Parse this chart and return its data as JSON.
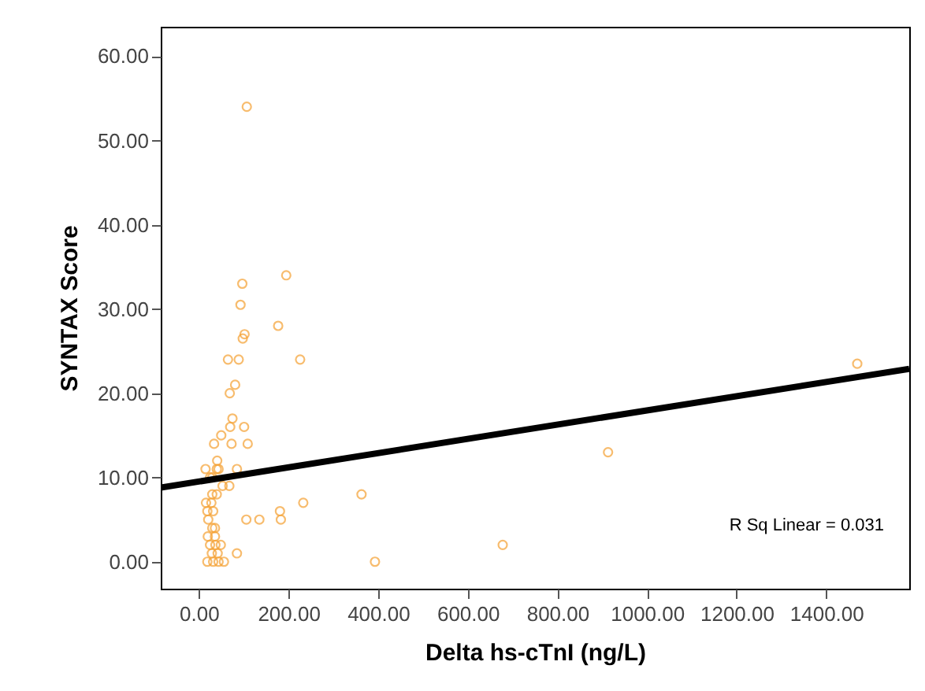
{
  "chart_data": {
    "type": "scatter",
    "xlabel": "Delta hs-cTnI (ng/L)",
    "ylabel": "SYNTAX Score",
    "annotations": [
      "R Sq Linear = 0.031"
    ],
    "grid": false,
    "xlim": [
      -85,
      1585
    ],
    "ylim": [
      -3.2,
      63.5
    ],
    "xticks": [
      {
        "value": 0,
        "label": "0.00"
      },
      {
        "value": 200,
        "label": "200.00"
      },
      {
        "value": 400,
        "label": "400.00"
      },
      {
        "value": 600,
        "label": "600.00"
      },
      {
        "value": 800,
        "label": "800.00"
      },
      {
        "value": 1000,
        "label": "1000.00"
      },
      {
        "value": 1200,
        "label": "1200.00"
      },
      {
        "value": 1400,
        "label": "1400.00"
      }
    ],
    "yticks": [
      {
        "value": 0,
        "label": "0.00"
      },
      {
        "value": 10,
        "label": "10.00"
      },
      {
        "value": 20,
        "label": "20.00"
      },
      {
        "value": 30,
        "label": "30.00"
      },
      {
        "value": 40,
        "label": "40.00"
      },
      {
        "value": 50,
        "label": "50.00"
      },
      {
        "value": 60,
        "label": "60.00"
      }
    ],
    "series": [
      {
        "color": "#f5a031",
        "marker": "circle",
        "x": [
          107,
          195,
          97,
          93,
          177,
          102,
          98,
          65,
          89,
          226,
          1469,
          81,
          69,
          75,
          70,
          101,
          50,
          34,
          73,
          109,
          41,
          15,
          40,
          44,
          85,
          913,
          25,
          30,
          53,
          68,
          30,
          40,
          363,
          16,
          28,
          233,
          19,
          32,
          181,
          21,
          106,
          135,
          183,
          30,
          36,
          20,
          36,
          25,
          37,
          49,
          678,
          29,
          42,
          85,
          19,
          32,
          44,
          56,
          393
        ],
        "values": [
          54,
          34,
          33,
          30.5,
          28,
          27,
          26.5,
          24,
          24,
          24,
          23.5,
          21,
          20,
          17,
          16,
          16,
          15,
          14,
          14,
          14,
          12,
          11,
          11,
          11,
          11,
          13,
          10,
          10,
          9,
          9,
          8,
          8,
          8,
          7,
          7,
          7,
          6,
          6,
          6,
          5,
          5,
          5,
          5,
          4,
          4,
          3,
          3,
          2,
          2,
          2,
          2,
          1,
          1,
          1,
          0,
          0,
          0,
          0,
          0
        ]
      },
      {
        "type": "line",
        "marker": "none",
        "color": "#000000",
        "x": [
          -85,
          1585
        ],
        "values": [
          8.8,
          22.9
        ]
      }
    ]
  }
}
